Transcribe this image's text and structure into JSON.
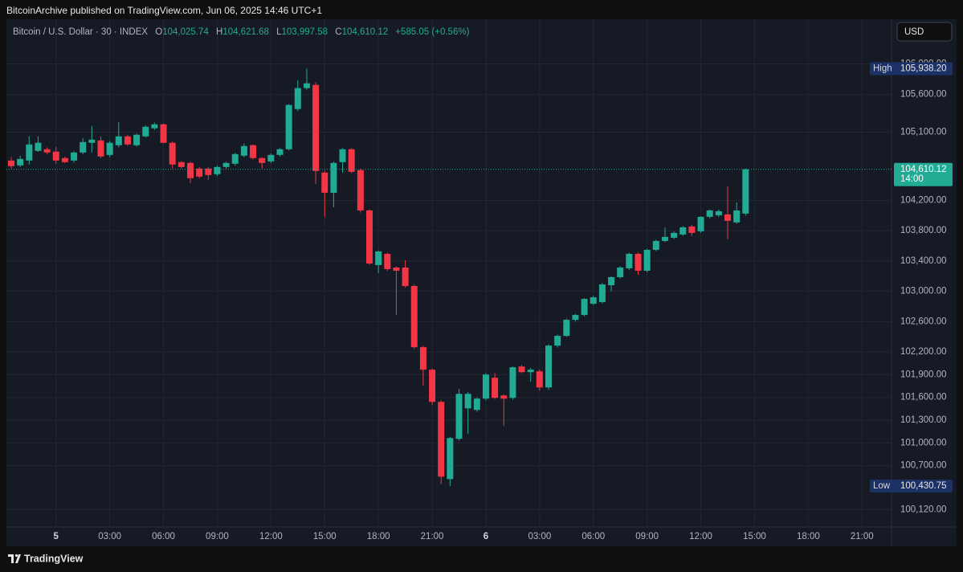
{
  "chart_data": {
    "type": "candlestick",
    "publisher": "BitcoinArchive published on TradingView.com, Jun 06, 2025 14:46 UTC+1",
    "title": "Bitcoin / U.S. Dollar · 30 · INDEX",
    "legend": [
      {
        "label": "O",
        "value": "104,025.74"
      },
      {
        "label": "H",
        "value": "104,621.68"
      },
      {
        "label": "L",
        "value": "103,997.58"
      },
      {
        "label": "C",
        "value": "104,610.12"
      }
    ],
    "change": "+585.05 (+0.56%)",
    "currency": "USD",
    "footer": "TradingView",
    "up_color": "#22ab94",
    "down_color": "#f23645",
    "open": [
      104726,
      104662,
      104726,
      104853,
      104875,
      104843,
      104758,
      104726,
      104832,
      104960,
      104991,
      104800,
      104928,
      105045,
      104928,
      105045,
      105151,
      105204,
      104960,
      104705,
      104694,
      104620,
      104620,
      104546,
      104641,
      104684,
      104790,
      104928,
      104758,
      104715,
      104800,
      104875,
      105406,
      105682,
      105724,
      104567,
      104301,
      104705,
      104875,
      104599,
      104068,
      103346,
      103495,
      103314,
      103314,
      103070,
      102263,
      101966,
      101541,
      100522,
      101053,
      101456,
      101435,
      101584,
      101860,
      101626,
      101594,
      102008,
      101934,
      101945,
      101732,
      102284,
      102412,
      102624,
      102688,
      102836,
      102858,
      103081,
      103187,
      103304,
      103495,
      103272,
      103548,
      103665,
      103707,
      103750,
      103856,
      103792,
      103983,
      104004,
      104015,
      103909,
      104025.74
    ],
    "high": [
      104770,
      104790,
      105045,
      105045,
      104900,
      104907,
      104779,
      104850,
      105023,
      105183,
      105045,
      104980,
      105236,
      105066,
      105080,
      105190,
      105225,
      105215,
      104980,
      104720,
      104710,
      104640,
      104640,
      104660,
      104710,
      104830,
      104950,
      104940,
      104770,
      104820,
      104890,
      105470,
      105788,
      105938.2,
      105760,
      104590,
      104710,
      104890,
      104890,
      104620,
      104080,
      103540,
      103510,
      103330,
      103410,
      103090,
      102280,
      101980,
      101560,
      101080,
      101711,
      101670,
      101600,
      101920,
      101920,
      101640,
      102008,
      102030,
      101990,
      101970,
      102300,
      102430,
      102640,
      102700,
      102910,
      102940,
      103110,
      103200,
      103330,
      103510,
      103510,
      103560,
      103680,
      103845,
      103790,
      103860,
      103880,
      103990,
      104080,
      104080,
      104386,
      104174,
      104621.68
    ],
    "low": [
      104620,
      104640,
      104673,
      104840,
      104810,
      104684,
      104690,
      104700,
      104810,
      104832,
      104758,
      104770,
      104900,
      104920,
      104910,
      105030,
      105130,
      104950,
      104620,
      104620,
      104429,
      104490,
      104471,
      104520,
      104620,
      104660,
      104770,
      104740,
      104620,
      104690,
      104780,
      104860,
      105380,
      105660,
      104418,
      103983,
      104110,
      104567,
      104560,
      104040,
      103350,
      103240,
      103270,
      102688,
      103050,
      102240,
      101754,
      101500,
      100458,
      100430.75,
      101030,
      101117,
      101410,
      101560,
      101580,
      101223,
      101570,
      101920,
      101807,
      101690,
      101700,
      102260,
      102400,
      102600,
      102670,
      102820,
      102840,
      103000,
      103170,
      103280,
      103219,
      103250,
      103530,
      103650,
      103690,
      103730,
      103730,
      103770,
      103960,
      103980,
      103686,
      103890,
      103997.58
    ],
    "close": [
      104652,
      104747,
      104938,
      104960,
      104832,
      104726,
      104705,
      104832,
      104970,
      105002,
      104779,
      104960,
      105045,
      104938,
      105066,
      105172,
      105204,
      104960,
      104673,
      104641,
      104493,
      104514,
      104535,
      104641,
      104694,
      104811,
      104917,
      104758,
      104694,
      104800,
      104875,
      105459,
      105682,
      105745,
      104588,
      104301,
      104694,
      104875,
      104577,
      104068,
      103367,
      103527,
      103293,
      103272,
      103070,
      102263,
      101966,
      101541,
      100554,
      101064,
      101647,
      101647,
      101584,
      101902,
      101594,
      101584,
      101998,
      101934,
      101966,
      101732,
      102284,
      102412,
      102624,
      102688,
      102900,
      102921,
      103091,
      103187,
      103314,
      103495,
      103272,
      103548,
      103665,
      103718,
      103771,
      103845,
      103771,
      103983,
      104068,
      104057,
      103930,
      104068,
      104610.12
    ],
    "xticks": [
      "5",
      "03:00",
      "06:00",
      "09:00",
      "12:00",
      "15:00",
      "18:00",
      "21:00",
      "6",
      "03:00",
      "06:00",
      "09:00",
      "12:00",
      "15:00",
      "18:00",
      "21:00"
    ],
    "ylim": [
      99890,
      106590
    ],
    "yticks": [
      {
        "value": 100120,
        "label": "100,120.00"
      },
      {
        "value": 100700,
        "label": "100,700.00"
      },
      {
        "value": 101000,
        "label": "101,000.00"
      },
      {
        "value": 101300,
        "label": "101,300.00"
      },
      {
        "value": 101600,
        "label": "101,600.00"
      },
      {
        "value": 101900,
        "label": "101,900.00"
      },
      {
        "value": 102200,
        "label": "102,200.00"
      },
      {
        "value": 102600,
        "label": "102,600.00"
      },
      {
        "value": 103000,
        "label": "103,000.00"
      },
      {
        "value": 103400,
        "label": "103,400.00"
      },
      {
        "value": 103800,
        "label": "103,800.00"
      },
      {
        "value": 104200,
        "label": "104,200.00"
      },
      {
        "value": 105100,
        "label": "105,100.00"
      },
      {
        "value": 105600,
        "label": "105,600.00"
      },
      {
        "value": 106000,
        "label": "106,000.00"
      }
    ],
    "grid": true,
    "price_labels": [
      {
        "name": "High",
        "value": 105938.2,
        "label": "105,938.20"
      },
      {
        "name": "Low",
        "value": 100430.75,
        "label": "100,430.75"
      }
    ],
    "last_price": {
      "value": 104610.12,
      "label": "104,610.12",
      "countdown": "14:00"
    }
  }
}
